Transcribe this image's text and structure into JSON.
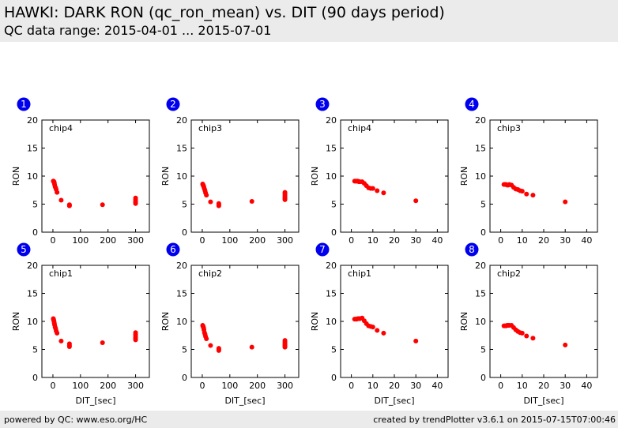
{
  "header": {
    "title": "HAWKI: DARK RON (qc_ron_mean) vs. DIT (90 days period)",
    "subtitle": "QC data range: 2015-04-01 ... 2015-07-01"
  },
  "footer": {
    "left": "powered by QC: www.eso.org/HC",
    "right": "created by trendPlotter v3.6.1 on 2015-07-15T07:00:46"
  },
  "colors": {
    "marker": "#ff0000",
    "badge": "#0000ee",
    "header_bg": "#ebebeb"
  },
  "chart_data": [
    {
      "type": "scatter",
      "index": "1",
      "label": "chip4",
      "xlabel": "",
      "ylabel": "RON",
      "xlim": [
        -40,
        350
      ],
      "ylim": [
        0,
        20
      ],
      "xticks": [
        0,
        100,
        200,
        300
      ],
      "yticks": [
        0,
        5,
        10,
        15,
        20
      ],
      "x": [
        1.5,
        2,
        3,
        4,
        5,
        6,
        8,
        10,
        12,
        15,
        30,
        60,
        60,
        60,
        180,
        300,
        300,
        300,
        300,
        300
      ],
      "y": [
        9.1,
        9.1,
        9.0,
        9.0,
        8.8,
        8.5,
        8.1,
        7.9,
        7.6,
        7.1,
        5.7,
        4.9,
        4.8,
        4.7,
        4.9,
        6.1,
        5.8,
        5.5,
        5.3,
        5.1
      ]
    },
    {
      "type": "scatter",
      "index": "2",
      "label": "chip3",
      "xlabel": "",
      "ylabel": "RON",
      "xlim": [
        -40,
        350
      ],
      "ylim": [
        0,
        20
      ],
      "xticks": [
        0,
        100,
        200,
        300
      ],
      "yticks": [
        0,
        5,
        10,
        15,
        20
      ],
      "x": [
        1.5,
        2,
        3,
        4,
        5,
        6,
        8,
        10,
        12,
        15,
        30,
        60,
        60,
        60,
        180,
        300,
        300,
        300,
        300,
        300,
        300
      ],
      "y": [
        8.6,
        8.5,
        8.4,
        8.3,
        8.2,
        8.0,
        7.7,
        7.4,
        7.0,
        6.6,
        5.4,
        5.1,
        4.9,
        4.7,
        5.5,
        7.1,
        6.8,
        6.5,
        6.2,
        6.0,
        5.8
      ]
    },
    {
      "type": "scatter",
      "index": "3",
      "label": "chip4",
      "xlabel": "",
      "ylabel": "RON",
      "xlim": [
        -5,
        45
      ],
      "ylim": [
        0,
        20
      ],
      "xticks": [
        0,
        10,
        20,
        30,
        40
      ],
      "yticks": [
        0,
        5,
        10,
        15,
        20
      ],
      "x": [
        1.5,
        2,
        2.5,
        3,
        3.5,
        4,
        5,
        6,
        7,
        8,
        9,
        10,
        12,
        15,
        30
      ],
      "y": [
        9.1,
        9.1,
        9.1,
        9.1,
        9.0,
        9.0,
        9.0,
        8.7,
        8.3,
        7.9,
        7.8,
        7.8,
        7.4,
        7.0,
        5.6
      ]
    },
    {
      "type": "scatter",
      "index": "4",
      "label": "chip3",
      "xlabel": "",
      "ylabel": "RON",
      "xlim": [
        -5,
        45
      ],
      "ylim": [
        0,
        20
      ],
      "xticks": [
        0,
        10,
        20,
        30,
        40
      ],
      "yticks": [
        0,
        5,
        10,
        15,
        20
      ],
      "x": [
        1.5,
        2,
        2.5,
        3,
        3.5,
        4,
        5,
        6,
        7,
        8,
        9,
        10,
        12,
        15,
        30
      ],
      "y": [
        8.5,
        8.5,
        8.5,
        8.4,
        8.4,
        8.5,
        8.4,
        8.0,
        7.7,
        7.6,
        7.4,
        7.3,
        6.8,
        6.6,
        5.4
      ]
    },
    {
      "type": "scatter",
      "index": "5",
      "label": "chip1",
      "xlabel": "DIT_[sec]",
      "ylabel": "RON",
      "xlim": [
        -40,
        350
      ],
      "ylim": [
        0,
        20
      ],
      "xticks": [
        0,
        100,
        200,
        300
      ],
      "yticks": [
        0,
        5,
        10,
        15,
        20
      ],
      "x": [
        1.5,
        2,
        3,
        4,
        5,
        6,
        8,
        10,
        12,
        15,
        30,
        60,
        60,
        60,
        180,
        300,
        300,
        300,
        300,
        300,
        300
      ],
      "y": [
        10.5,
        10.4,
        10.2,
        10.0,
        9.7,
        9.4,
        9.0,
        8.7,
        8.3,
        7.9,
        6.5,
        6.0,
        5.7,
        5.5,
        6.2,
        8.0,
        7.7,
        7.4,
        7.1,
        6.9,
        6.7
      ]
    },
    {
      "type": "scatter",
      "index": "6",
      "label": "chip2",
      "xlabel": "DIT_[sec]",
      "ylabel": "RON",
      "xlim": [
        -40,
        350
      ],
      "ylim": [
        0,
        20
      ],
      "xticks": [
        0,
        100,
        200,
        300
      ],
      "yticks": [
        0,
        5,
        10,
        15,
        20
      ],
      "x": [
        1.5,
        2,
        3,
        4,
        5,
        6,
        8,
        10,
        12,
        15,
        30,
        60,
        60,
        60,
        180,
        300,
        300,
        300,
        300,
        300,
        300
      ],
      "y": [
        9.3,
        9.2,
        9.1,
        9.0,
        8.8,
        8.5,
        8.0,
        7.7,
        7.3,
        6.9,
        5.7,
        5.2,
        5.0,
        4.8,
        5.4,
        6.6,
        6.3,
        6.0,
        5.8,
        5.6,
        5.4
      ]
    },
    {
      "type": "scatter",
      "index": "7",
      "label": "chip1",
      "xlabel": "DIT_[sec]",
      "ylabel": "RON",
      "xlim": [
        -5,
        45
      ],
      "ylim": [
        0,
        20
      ],
      "xticks": [
        0,
        10,
        20,
        30,
        40
      ],
      "yticks": [
        0,
        5,
        10,
        15,
        20
      ],
      "x": [
        1.5,
        2,
        2.5,
        3,
        3.5,
        4,
        5,
        6,
        7,
        8,
        9,
        10,
        12,
        15,
        30
      ],
      "y": [
        10.4,
        10.4,
        10.4,
        10.5,
        10.5,
        10.5,
        10.6,
        10.1,
        9.6,
        9.2,
        9.1,
        9.0,
        8.4,
        7.9,
        6.5
      ]
    },
    {
      "type": "scatter",
      "index": "8",
      "label": "chip2",
      "xlabel": "DIT_[sec]",
      "ylabel": "RON",
      "xlim": [
        -5,
        45
      ],
      "ylim": [
        0,
        20
      ],
      "xticks": [
        0,
        10,
        20,
        30,
        40
      ],
      "yticks": [
        0,
        5,
        10,
        15,
        20
      ],
      "x": [
        1.5,
        2,
        2.5,
        3,
        3.5,
        4,
        5,
        6,
        7,
        8,
        9,
        10,
        12,
        15,
        30
      ],
      "y": [
        9.2,
        9.2,
        9.2,
        9.3,
        9.3,
        9.3,
        9.3,
        8.9,
        8.5,
        8.2,
        8.0,
        7.9,
        7.4,
        7.0,
        5.8
      ]
    }
  ]
}
